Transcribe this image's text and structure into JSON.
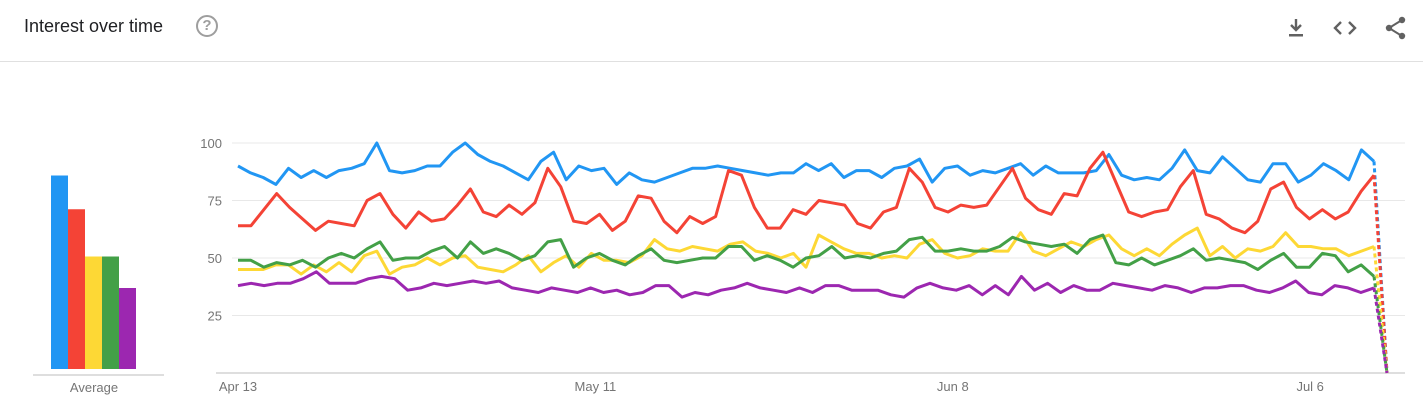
{
  "header": {
    "title": "Interest over time",
    "help_glyph": "?",
    "icons": [
      "download-icon",
      "embed-icon",
      "share-icon"
    ]
  },
  "average": {
    "label": "Average",
    "values": [
      86,
      71,
      50,
      50,
      36
    ]
  },
  "chart_data": {
    "type": "line",
    "title": "Interest over time",
    "ylim": [
      0,
      100
    ],
    "y_ticks": [
      25,
      50,
      75,
      100
    ],
    "x_tick_labels": [
      "Apr 13",
      "May 11",
      "Jun 8",
      "Jul 6"
    ],
    "x_tick_index": [
      0,
      28,
      56,
      84
    ],
    "grid": true,
    "series": [
      {
        "color": "#2196f3",
        "values": [
          90,
          87,
          85,
          82,
          89,
          85,
          88,
          85,
          88,
          89,
          91,
          100,
          88,
          87,
          88,
          90,
          90,
          96,
          100,
          95,
          92,
          90,
          87,
          84,
          92,
          96,
          84,
          90,
          88,
          89,
          82,
          87,
          84,
          83,
          85,
          87,
          89,
          89,
          90,
          89,
          88,
          87,
          86,
          87,
          87,
          91,
          88,
          91,
          85,
          88,
          88,
          85,
          89,
          90,
          93,
          83,
          89,
          90,
          86,
          88,
          87,
          89,
          91,
          86,
          90,
          87,
          87,
          87,
          88,
          95,
          86,
          84,
          85,
          84,
          89,
          97,
          88,
          87,
          94,
          89,
          84,
          83,
          91,
          91,
          83,
          86,
          91,
          88,
          84,
          97,
          92,
          0
        ],
        "last_segment_dashed": true
      },
      {
        "color": "#f44336",
        "values": [
          64,
          64,
          71,
          78,
          72,
          67,
          62,
          66,
          65,
          64,
          75,
          78,
          69,
          63,
          70,
          66,
          67,
          73,
          80,
          70,
          68,
          73,
          69,
          74,
          89,
          81,
          66,
          65,
          69,
          62,
          66,
          77,
          76,
          66,
          61,
          68,
          65,
          68,
          88,
          86,
          72,
          63,
          63,
          71,
          69,
          75,
          74,
          73,
          65,
          63,
          70,
          72,
          89,
          83,
          72,
          70,
          73,
          72,
          73,
          81,
          89,
          76,
          71,
          69,
          78,
          77,
          89,
          96,
          83,
          70,
          68,
          70,
          71,
          81,
          88,
          69,
          67,
          63,
          61,
          66,
          80,
          83,
          72,
          67,
          71,
          67,
          70,
          79,
          86,
          0
        ],
        "last_segment_dashed": true
      },
      {
        "color": "#fdd835",
        "values": [
          45,
          45,
          45,
          47,
          47,
          43,
          47,
          44,
          48,
          44,
          51,
          53,
          43,
          46,
          47,
          50,
          47,
          50,
          51,
          46,
          45,
          44,
          47,
          51,
          44,
          48,
          51,
          46,
          52,
          49,
          49,
          48,
          51,
          58,
          54,
          53,
          55,
          54,
          53,
          56,
          57,
          53,
          52,
          50,
          52,
          46,
          60,
          57,
          54,
          52,
          52,
          50,
          51,
          50,
          56,
          58,
          52,
          50,
          51,
          54,
          53,
          53,
          61,
          53,
          51,
          54,
          57,
          55,
          58,
          60,
          54,
          51,
          54,
          51,
          56,
          60,
          63,
          51,
          55,
          50,
          54,
          53,
          55,
          61,
          55,
          55,
          54,
          54,
          51,
          53,
          55,
          0
        ],
        "last_segment_dashed": true
      },
      {
        "color": "#43a047",
        "values": [
          49,
          49,
          46,
          48,
          47,
          49,
          46,
          50,
          52,
          50,
          54,
          57,
          49,
          50,
          50,
          53,
          55,
          50,
          57,
          52,
          54,
          52,
          49,
          51,
          57,
          58,
          46,
          50,
          52,
          49,
          47,
          51,
          54,
          49,
          48,
          49,
          50,
          50,
          55,
          55,
          49,
          51,
          49,
          46,
          50,
          51,
          55,
          50,
          51,
          50,
          52,
          53,
          58,
          59,
          53,
          53,
          54,
          53,
          53,
          55,
          59,
          57,
          56,
          55,
          56,
          52,
          58,
          60,
          48,
          47,
          50,
          47,
          49,
          51,
          54,
          49,
          50,
          49,
          48,
          45,
          49,
          52,
          46,
          46,
          52,
          51,
          44,
          47,
          42,
          0
        ],
        "last_segment_dashed": true
      },
      {
        "color": "#9c27b0",
        "values": [
          38,
          39,
          38,
          39,
          39,
          41,
          44,
          39,
          39,
          39,
          41,
          42,
          41,
          36,
          37,
          39,
          38,
          39,
          40,
          39,
          40,
          37,
          36,
          35,
          37,
          36,
          35,
          37,
          35,
          36,
          34,
          35,
          38,
          38,
          33,
          35,
          34,
          36,
          37,
          39,
          37,
          36,
          35,
          37,
          35,
          38,
          38,
          36,
          36,
          36,
          34,
          33,
          37,
          39,
          37,
          36,
          38,
          34,
          38,
          34,
          42,
          36,
          39,
          35,
          38,
          36,
          36,
          39,
          38,
          37,
          36,
          38,
          37,
          35,
          37,
          37,
          38,
          38,
          36,
          35,
          37,
          40,
          35,
          34,
          38,
          37,
          35,
          37,
          0
        ],
        "last_segment_dashed": true
      }
    ]
  }
}
